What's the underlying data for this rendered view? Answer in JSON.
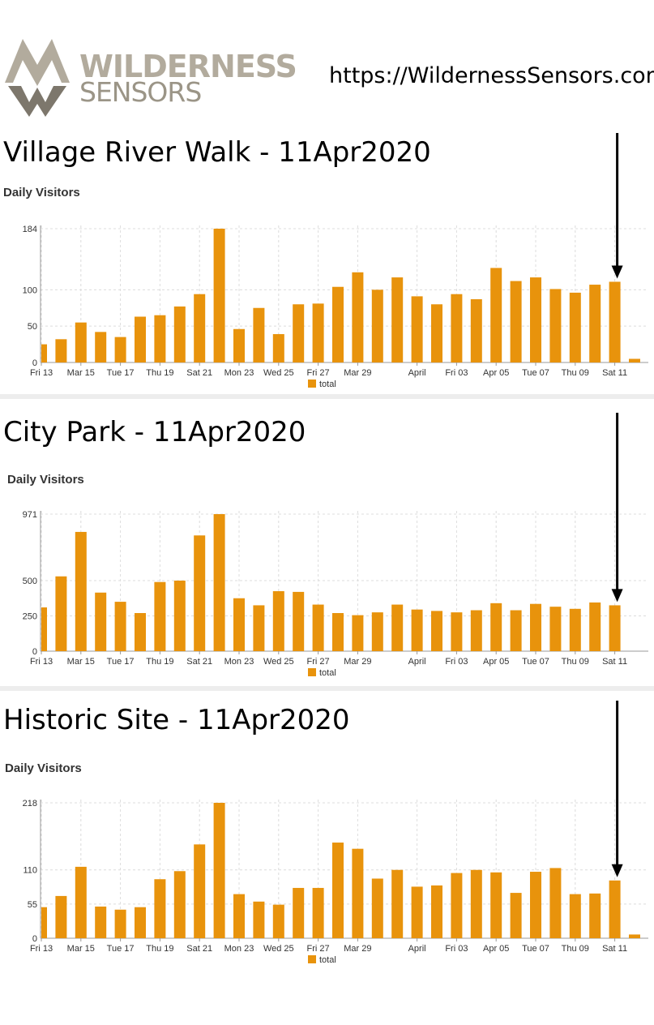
{
  "header": {
    "logo_line1": "WILDERNESS",
    "logo_line2": "SENSORS",
    "url": "https://WildernessSensors.com"
  },
  "colors": {
    "bar": "#e8930c",
    "grid": "#dcdcdc",
    "axis": "#999999",
    "arrow": "#000000"
  },
  "chart_data": [
    {
      "type": "bar",
      "panel_title": "Village River Walk - 11Apr2020",
      "title": "Daily Visitors",
      "legend": "total",
      "x_tick_labels": [
        "Fri 13",
        "Mar 15",
        "Tue 17",
        "Thu 19",
        "Sat 21",
        "Mon 23",
        "Wed 25",
        "Fri 27",
        "Mar 29",
        "April",
        "Fri 03",
        "Apr 05",
        "Tue 07",
        "Thu 09",
        "Sat 11"
      ],
      "y_ticks": [
        0,
        50,
        100,
        184
      ],
      "ylim": [
        0,
        184
      ],
      "values": [
        25,
        32,
        55,
        42,
        35,
        63,
        65,
        77,
        94,
        184,
        46,
        75,
        39,
        80,
        81,
        104,
        124,
        100,
        117,
        91,
        80,
        94,
        87,
        130,
        112,
        117,
        101,
        96,
        107,
        111,
        5
      ],
      "arrow_index": 29
    },
    {
      "type": "bar",
      "panel_title": "City Park - 11Apr2020",
      "title": "Daily Visitors",
      "legend": "total",
      "x_tick_labels": [
        "Fri 13",
        "Mar 15",
        "Tue 17",
        "Thu 19",
        "Sat 21",
        "Mon 23",
        "Wed 25",
        "Fri 27",
        "Mar 29",
        "April",
        "Fri 03",
        "Apr 05",
        "Tue 07",
        "Thu 09",
        "Sat 11"
      ],
      "y_ticks": [
        0,
        250,
        500,
        971
      ],
      "ylim": [
        0,
        971
      ],
      "values": [
        310,
        530,
        845,
        415,
        350,
        270,
        490,
        500,
        820,
        971,
        375,
        325,
        425,
        420,
        330,
        270,
        255,
        275,
        330,
        295,
        285,
        275,
        290,
        340,
        290,
        335,
        315,
        300,
        345,
        325
      ],
      "arrow_index": 29
    },
    {
      "type": "bar",
      "panel_title": "Historic Site - 11Apr2020",
      "title": "Daily Visitors",
      "legend": "total",
      "x_tick_labels": [
        "Fri 13",
        "Mar 15",
        "Tue 17",
        "Thu 19",
        "Sat 21",
        "Mon 23",
        "Wed 25",
        "Fri 27",
        "Mar 29",
        "April",
        "Fri 03",
        "Apr 05",
        "Tue 07",
        "Thu 09",
        "Sat 11"
      ],
      "y_ticks": [
        0,
        55,
        110,
        218
      ],
      "ylim": [
        0,
        218
      ],
      "values": [
        50,
        68,
        115,
        51,
        46,
        50,
        95,
        108,
        151,
        218,
        71,
        59,
        54,
        81,
        81,
        154,
        144,
        96,
        110,
        83,
        85,
        105,
        110,
        106,
        73,
        107,
        113,
        71,
        72,
        93,
        6
      ],
      "arrow_index": 29
    }
  ]
}
